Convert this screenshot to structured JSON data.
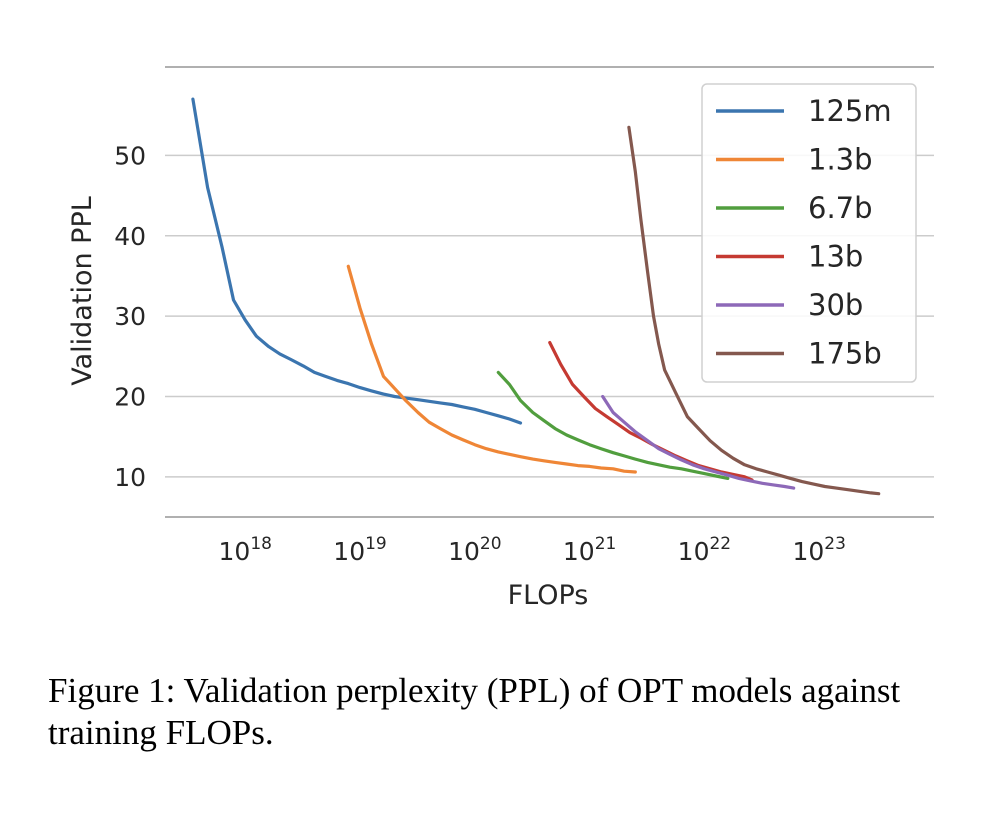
{
  "chart_data": {
    "type": "line",
    "xlabel": "FLOPs",
    "ylabel": "Validation PPL",
    "x_scale": "log",
    "xlim": [
      2e+17,
      1e+24
    ],
    "ylim": [
      5,
      61
    ],
    "x_ticks": [
      {
        "value": 1e+18,
        "base": "10",
        "exp": "18"
      },
      {
        "value": 1e+19,
        "base": "10",
        "exp": "19"
      },
      {
        "value": 1e+20,
        "base": "10",
        "exp": "20"
      },
      {
        "value": 1e+21,
        "base": "10",
        "exp": "21"
      },
      {
        "value": 1e+22,
        "base": "10",
        "exp": "22"
      },
      {
        "value": 1e+23,
        "base": "10",
        "exp": "23"
      }
    ],
    "y_ticks": [
      10,
      20,
      30,
      40,
      50
    ],
    "grid": "horizontal",
    "legend_position": "top-right",
    "series": [
      {
        "name": "125m",
        "color": "#3b75af",
        "points": [
          [
            3.5e+17,
            57
          ],
          [
            4.7e+17,
            46
          ],
          [
            6.3e+17,
            38.5
          ],
          [
            7.9e+17,
            32
          ],
          [
            1e+18,
            29.5
          ],
          [
            1.25e+18,
            27.5
          ],
          [
            1.6e+18,
            26.2
          ],
          [
            2e+18,
            25.3
          ],
          [
            2.5e+18,
            24.6
          ],
          [
            3.2e+18,
            23.8
          ],
          [
            4e+18,
            23.0
          ],
          [
            5e+18,
            22.5
          ],
          [
            6.3e+18,
            22.0
          ],
          [
            7.9e+18,
            21.6
          ],
          [
            1e+19,
            21.1
          ],
          [
            1.25e+19,
            20.7
          ],
          [
            1.6e+19,
            20.3
          ],
          [
            2e+19,
            20.0
          ],
          [
            2.5e+19,
            19.8
          ],
          [
            3.2e+19,
            19.6
          ],
          [
            4e+19,
            19.4
          ],
          [
            5e+19,
            19.2
          ],
          [
            6.3e+19,
            19.0
          ],
          [
            7.9e+19,
            18.7
          ],
          [
            1e+20,
            18.4
          ],
          [
            1.26e+20,
            18.0
          ],
          [
            1.6e+20,
            17.6
          ],
          [
            2e+20,
            17.2
          ],
          [
            2.5e+20,
            16.7
          ]
        ]
      },
      {
        "name": "1.3b",
        "color": "#ef8636",
        "points": [
          [
            7.9e+18,
            36.2
          ],
          [
            1e+19,
            31
          ],
          [
            1.26e+19,
            26.5
          ],
          [
            1.6e+19,
            22.5
          ],
          [
            2e+19,
            21.0
          ],
          [
            2.5e+19,
            19.5
          ],
          [
            3.2e+19,
            18.0
          ],
          [
            4e+19,
            16.8
          ],
          [
            5e+19,
            16.0
          ],
          [
            6.3e+19,
            15.2
          ],
          [
            7.9e+19,
            14.6
          ],
          [
            1e+20,
            14.0
          ],
          [
            1.26e+20,
            13.5
          ],
          [
            1.6e+20,
            13.1
          ],
          [
            2e+20,
            12.8
          ],
          [
            2.5e+20,
            12.5
          ],
          [
            3.2e+20,
            12.2
          ],
          [
            4e+20,
            12.0
          ],
          [
            5e+20,
            11.8
          ],
          [
            6.3e+20,
            11.6
          ],
          [
            7.9e+20,
            11.4
          ],
          [
            1e+21,
            11.3
          ],
          [
            1.26e+21,
            11.1
          ],
          [
            1.6e+21,
            11.0
          ],
          [
            2e+21,
            10.7
          ],
          [
            2.5e+21,
            10.6
          ]
        ]
      },
      {
        "name": "6.7b",
        "color": "#519e3e",
        "points": [
          [
            1.6e+20,
            23.0
          ],
          [
            2e+20,
            21.5
          ],
          [
            2.5e+20,
            19.5
          ],
          [
            3.2e+20,
            18.0
          ],
          [
            4e+20,
            17.0
          ],
          [
            5e+20,
            16.0
          ],
          [
            6.3e+20,
            15.2
          ],
          [
            7.9e+20,
            14.6
          ],
          [
            1e+21,
            14.0
          ],
          [
            1.26e+21,
            13.5
          ],
          [
            1.6e+21,
            13.0
          ],
          [
            2e+21,
            12.6
          ],
          [
            2.5e+21,
            12.2
          ],
          [
            3.2e+21,
            11.8
          ],
          [
            4e+21,
            11.5
          ],
          [
            5e+21,
            11.2
          ],
          [
            6.3e+21,
            11.0
          ],
          [
            7.9e+21,
            10.7
          ],
          [
            1e+22,
            10.4
          ],
          [
            1.26e+22,
            10.1
          ],
          [
            1.6e+22,
            9.8
          ]
        ]
      },
      {
        "name": "13b",
        "color": "#c53a32",
        "points": [
          [
            4.5e+20,
            26.7
          ],
          [
            5.6e+20,
            24.0
          ],
          [
            7.1e+20,
            21.5
          ],
          [
            8.9e+20,
            20.0
          ],
          [
            1.12e+21,
            18.5
          ],
          [
            1.41e+21,
            17.5
          ],
          [
            1.78e+21,
            16.5
          ],
          [
            2.24e+21,
            15.5
          ],
          [
            2.82e+21,
            14.8
          ],
          [
            3.55e+21,
            14.0
          ],
          [
            4.47e+21,
            13.3
          ],
          [
            5.62e+21,
            12.6
          ],
          [
            7.08e+21,
            12.0
          ],
          [
            8.91e+21,
            11.4
          ],
          [
            1.12e+22,
            11.0
          ],
          [
            1.41e+22,
            10.6
          ],
          [
            1.78e+22,
            10.3
          ],
          [
            2.24e+22,
            10.0
          ],
          [
            2.6e+22,
            9.6
          ]
        ]
      },
      {
        "name": "30b",
        "color": "#8d69b8",
        "points": [
          [
            1.3e+21,
            20.0
          ],
          [
            1.6e+21,
            18.0
          ],
          [
            2e+21,
            16.8
          ],
          [
            2.5e+21,
            15.6
          ],
          [
            3.2e+21,
            14.5
          ],
          [
            4e+21,
            13.5
          ],
          [
            5e+21,
            12.8
          ],
          [
            6.3e+21,
            12.1
          ],
          [
            7.9e+21,
            11.5
          ],
          [
            1e+22,
            11.0
          ],
          [
            1.26e+22,
            10.6
          ],
          [
            1.6e+22,
            10.2
          ],
          [
            2e+22,
            9.8
          ],
          [
            2.5e+22,
            9.5
          ],
          [
            3.2e+22,
            9.2
          ],
          [
            4e+22,
            9.0
          ],
          [
            5e+22,
            8.8
          ],
          [
            6e+22,
            8.6
          ]
        ]
      },
      {
        "name": "175b",
        "color": "#84584e",
        "points": [
          [
            2.2e+21,
            53.5
          ],
          [
            2.5e+21,
            48.0
          ],
          [
            2.8e+21,
            42.0
          ],
          [
            3.2e+21,
            35.5
          ],
          [
            3.6e+21,
            30.0
          ],
          [
            4e+21,
            26.5
          ],
          [
            4.5e+21,
            23.3
          ],
          [
            5.6e+21,
            20.5
          ],
          [
            7.1e+21,
            17.5
          ],
          [
            8.9e+21,
            16.0
          ],
          [
            1.12e+22,
            14.5
          ],
          [
            1.41e+22,
            13.3
          ],
          [
            1.78e+22,
            12.3
          ],
          [
            2.24e+22,
            11.5
          ],
          [
            2.82e+22,
            11.0
          ],
          [
            3.55e+22,
            10.6
          ],
          [
            4.47e+22,
            10.2
          ],
          [
            5.62e+22,
            9.8
          ],
          [
            7.08e+22,
            9.4
          ],
          [
            8.91e+22,
            9.1
          ],
          [
            1.12e+23,
            8.8
          ],
          [
            1.41e+23,
            8.6
          ],
          [
            1.78e+23,
            8.4
          ],
          [
            2.24e+23,
            8.2
          ],
          [
            2.82e+23,
            8.0
          ],
          [
            3.3e+23,
            7.9
          ]
        ]
      }
    ]
  },
  "caption": "Figure 1: Validation perplexity (PPL) of OPT models against training FLOPs."
}
